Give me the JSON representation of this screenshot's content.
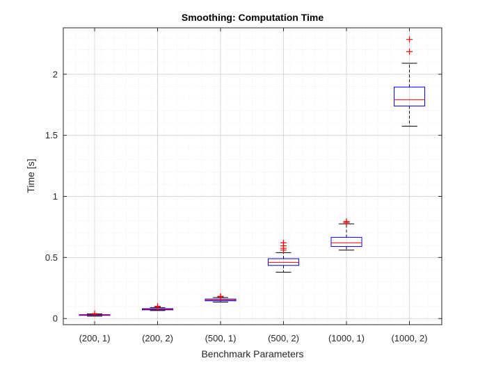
{
  "chart_data": {
    "type": "box",
    "title": "Smoothing: Computation Time",
    "xlabel": "Benchmark Parameters",
    "ylabel": "Time [s]",
    "ylim": [
      -0.05,
      2.38
    ],
    "yticks": [
      0,
      0.5,
      1,
      1.5,
      2
    ],
    "ytick_labels": [
      "0",
      "0.5",
      "1",
      "1.5",
      "2"
    ],
    "grid": true,
    "minor_grid": true,
    "colors": {
      "box": "#0000ff",
      "median": "#ff0000",
      "whisker": "#000000",
      "outlier": "#ff0000",
      "grid": "#d9d9d9",
      "axes": "#262626"
    },
    "categories": [
      "(200, 1)",
      "(200, 2)",
      "(500, 1)",
      "(500, 2)",
      "(1000, 1)",
      "(1000, 2)"
    ],
    "boxes": [
      {
        "category": "(200, 1)",
        "whisker_low": 0.02,
        "q1": 0.026,
        "median": 0.029,
        "q3": 0.032,
        "whisker_high": 0.038,
        "outliers": [
          0.04
        ]
      },
      {
        "category": "(200, 2)",
        "whisker_low": 0.065,
        "q1": 0.071,
        "median": 0.075,
        "q3": 0.081,
        "whisker_high": 0.09,
        "outliers": [
          0.095,
          0.1
        ]
      },
      {
        "category": "(500, 1)",
        "whisker_low": 0.135,
        "q1": 0.145,
        "median": 0.152,
        "q3": 0.16,
        "whisker_high": 0.172,
        "outliers": [
          0.178,
          0.182
        ]
      },
      {
        "category": "(500, 2)",
        "whisker_low": 0.38,
        "q1": 0.435,
        "median": 0.46,
        "q3": 0.49,
        "whisker_high": 0.54,
        "outliers": [
          0.56,
          0.575,
          0.595,
          0.62
        ]
      },
      {
        "category": "(1000, 1)",
        "whisker_low": 0.56,
        "q1": 0.59,
        "median": 0.62,
        "q3": 0.665,
        "whisker_high": 0.775,
        "outliers": [
          0.785,
          0.795
        ]
      },
      {
        "category": "(1000, 2)",
        "whisker_low": 1.575,
        "q1": 1.74,
        "median": 1.79,
        "q3": 1.895,
        "whisker_high": 2.09,
        "outliers": [
          2.185,
          2.285
        ]
      }
    ]
  }
}
